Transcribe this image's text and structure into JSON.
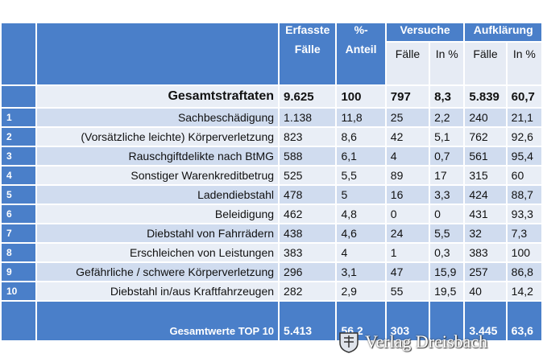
{
  "header": {
    "erfasste_faelle": [
      "Erfasste",
      "Fälle"
    ],
    "anteil": [
      "%-",
      "Anteil"
    ],
    "versuche": "Versuche",
    "aufklaerung": "Aufklärung",
    "sub_faelle": "Fälle",
    "sub_in_prozent": "In %"
  },
  "total": {
    "label": "Gesamtstraftaten",
    "faelle": "9.625",
    "anteil": "100",
    "versuche_faelle": "797",
    "versuche_prozent": "8,3",
    "aufklaerung_faelle": "5.839",
    "aufklaerung_prozent": "60,7"
  },
  "rows": [
    {
      "rank": "1",
      "label": "Sachbeschädigung",
      "faelle": "1.138",
      "anteil": "11,8",
      "versuche_faelle": "25",
      "versuche_prozent": "2,2",
      "aufklaerung_faelle": "240",
      "aufklaerung_prozent": "21,1"
    },
    {
      "rank": "2",
      "label": "(Vorsätzliche leichte) Körperverletzung",
      "faelle": "823",
      "anteil": "8,6",
      "versuche_faelle": "42",
      "versuche_prozent": "5,1",
      "aufklaerung_faelle": "762",
      "aufklaerung_prozent": "92,6"
    },
    {
      "rank": "3",
      "label": "Rauschgiftdelikte nach BtMG",
      "faelle": "588",
      "anteil": "6,1",
      "versuche_faelle": "4",
      "versuche_prozent": "0,7",
      "aufklaerung_faelle": "561",
      "aufklaerung_prozent": "95,4"
    },
    {
      "rank": "4",
      "label": "Sonstiger Warenkreditbetrug",
      "faelle": "525",
      "anteil": "5,5",
      "versuche_faelle": "89",
      "versuche_prozent": "17",
      "aufklaerung_faelle": "315",
      "aufklaerung_prozent": "60"
    },
    {
      "rank": "5",
      "label": "Ladendiebstahl",
      "faelle": "478",
      "anteil": "5",
      "versuche_faelle": "16",
      "versuche_prozent": "3,3",
      "aufklaerung_faelle": "424",
      "aufklaerung_prozent": "88,7"
    },
    {
      "rank": "6",
      "label": "Beleidigung",
      "faelle": "462",
      "anteil": "4,8",
      "versuche_faelle": "0",
      "versuche_prozent": "0",
      "aufklaerung_faelle": "431",
      "aufklaerung_prozent": "93,3"
    },
    {
      "rank": "7",
      "label": "Diebstahl von Fahrrädern",
      "faelle": "438",
      "anteil": "4,6",
      "versuche_faelle": "24",
      "versuche_prozent": "5,5",
      "aufklaerung_faelle": "32",
      "aufklaerung_prozent": "7,3"
    },
    {
      "rank": "8",
      "label": "Erschleichen von Leistungen",
      "faelle": "383",
      "anteil": "4",
      "versuche_faelle": "1",
      "versuche_prozent": "0,3",
      "aufklaerung_faelle": "383",
      "aufklaerung_prozent": "100"
    },
    {
      "rank": "9",
      "label": "Gefährliche / schwere Körperverletzung",
      "faelle": "296",
      "anteil": "3,1",
      "versuche_faelle": "47",
      "versuche_prozent": "15,9",
      "aufklaerung_faelle": "257",
      "aufklaerung_prozent": "86,8"
    },
    {
      "rank": "10",
      "label": "Diebstahl in/aus Kraftfahrzeugen",
      "faelle": "282",
      "anteil": "2,9",
      "versuche_faelle": "55",
      "versuche_prozent": "19,5",
      "aufklaerung_faelle": "40",
      "aufklaerung_prozent": "14,2"
    }
  ],
  "footer": {
    "label": "Gesamtwerte TOP 10",
    "faelle": "5.413",
    "anteil": "56,2",
    "versuche_faelle": "303",
    "versuche_prozent": "",
    "aufklaerung_faelle": "3.445",
    "aufklaerung_prozent": "63,6"
  },
  "watermark": {
    "text": "Verlag Dreisbach"
  },
  "colors": {
    "header_blue": "#4a7fc9",
    "row_dark": "#d0dcef",
    "row_light": "#e9eef6"
  }
}
